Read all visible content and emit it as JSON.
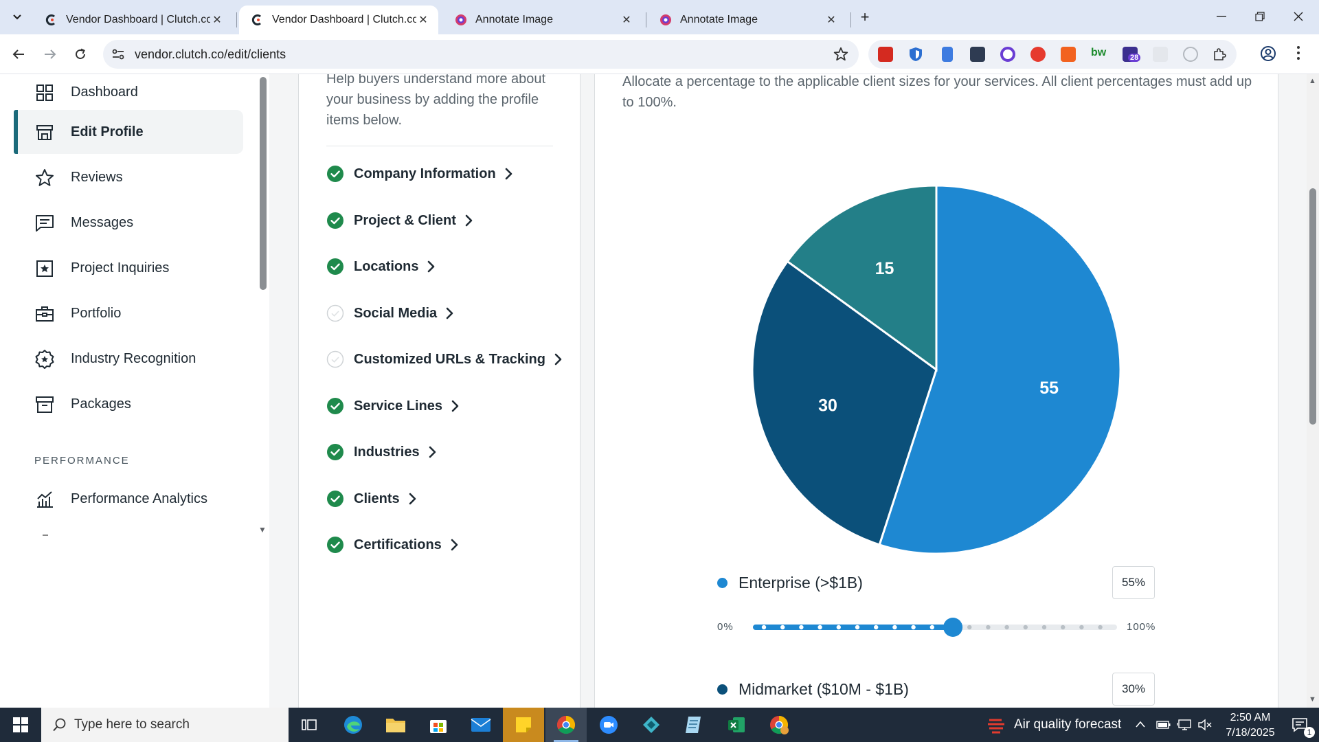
{
  "browser": {
    "tabs": [
      {
        "title": "Vendor Dashboard | Clutch.co",
        "active": false
      },
      {
        "title": "Vendor Dashboard | Clutch.co",
        "active": true
      },
      {
        "title": "Annotate Image",
        "active": false
      },
      {
        "title": "Annotate Image",
        "active": false
      }
    ],
    "close_glyph": "✕",
    "new_tab_glyph": "+",
    "url": "vendor.clutch.co/edit/clients",
    "extension_badge": "28"
  },
  "sidebar": {
    "items": [
      {
        "label": "Dashboard",
        "icon": "dashboard-grid-icon"
      },
      {
        "label": "Edit Profile",
        "icon": "storefront-icon",
        "active": true
      },
      {
        "label": "Reviews",
        "icon": "star-icon"
      },
      {
        "label": "Messages",
        "icon": "message-icon"
      },
      {
        "label": "Project Inquiries",
        "icon": "star-box-icon"
      },
      {
        "label": "Portfolio",
        "icon": "briefcase-icon"
      },
      {
        "label": "Industry Recognition",
        "icon": "award-badge-icon"
      },
      {
        "label": "Packages",
        "icon": "archive-box-icon"
      }
    ],
    "section_label": "PERFORMANCE",
    "performance_items": [
      {
        "label": "Performance Analytics",
        "icon": "analytics-chart-icon"
      }
    ]
  },
  "profile_steps": {
    "help_text": "Help buyers understand more about your business by adding the profile items below.",
    "items": [
      {
        "label": "Company Information",
        "complete": true
      },
      {
        "label": "Project & Client",
        "complete": true
      },
      {
        "label": "Locations",
        "complete": true
      },
      {
        "label": "Social Media",
        "complete": false
      },
      {
        "label": "Customized URLs & Tracking",
        "complete": false
      },
      {
        "label": "Service Lines",
        "complete": true
      },
      {
        "label": "Industries",
        "complete": true
      },
      {
        "label": "Clients",
        "complete": true
      },
      {
        "label": "Certifications",
        "complete": true
      }
    ]
  },
  "client_sizes": {
    "instructions": "Allocate a percentage to the applicable client sizes for your services. All client percentages must add up to 100%.",
    "slider_min_label": "0%",
    "slider_max_label": "100%",
    "rows": [
      {
        "label": "Enterprise (>$1B)",
        "percent_label": "55%",
        "color": "#1e88d2",
        "slider_value": 55
      },
      {
        "label": "Midmarket ($10M - $1B)",
        "percent_label": "30%",
        "color": "#0b507a"
      }
    ]
  },
  "chart_data": {
    "type": "pie",
    "values": [
      55,
      30,
      15
    ],
    "labels": [
      "55",
      "30",
      "15"
    ],
    "colors": [
      "#1e88d2",
      "#0b507a",
      "#237f88"
    ]
  },
  "taskbar": {
    "search_placeholder": "Type here to search",
    "weather": "Air quality forecast",
    "time": "2:50 AM",
    "date": "7/18/2025",
    "notification_count": "1"
  }
}
